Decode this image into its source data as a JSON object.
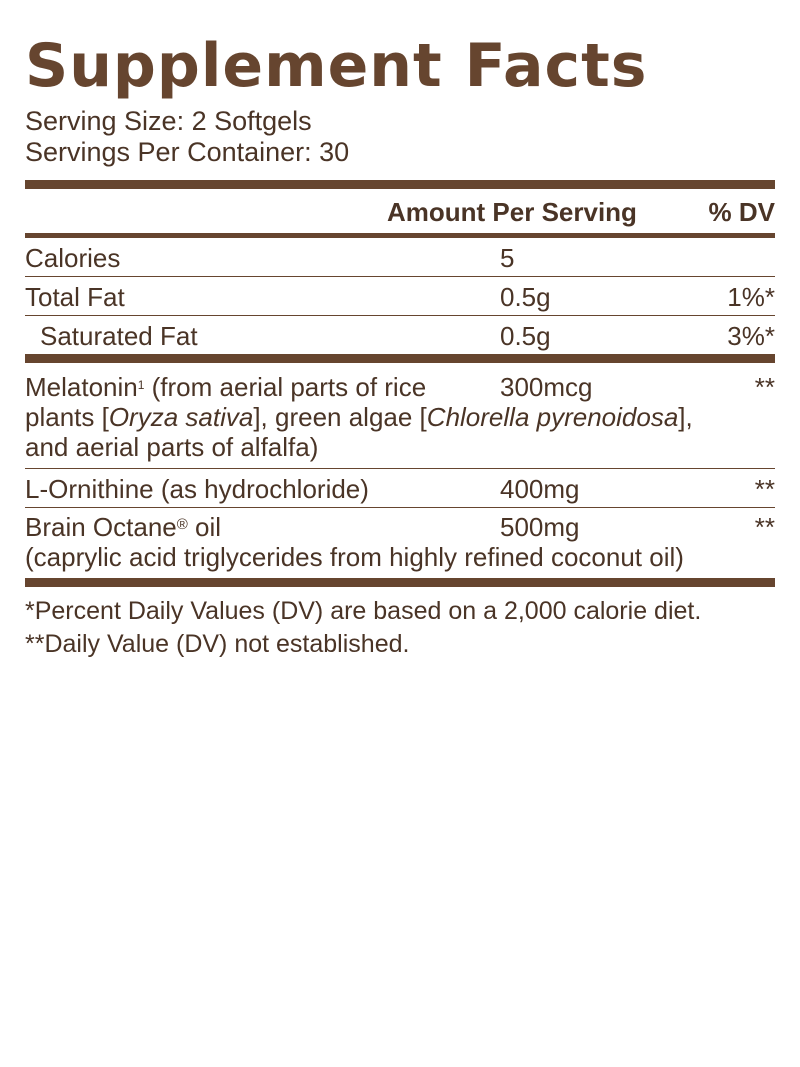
{
  "title": "Supplement Facts",
  "serving_size": "Serving Size: 2 Softgels",
  "servings_per_container": "Servings Per Container: 30",
  "header": {
    "amount": "Amount Per Serving",
    "dv": "% DV"
  },
  "nutrients": [
    {
      "name": "Calories",
      "amount": "5",
      "dv": ""
    },
    {
      "name": "Total Fat",
      "amount": "0.5g",
      "dv": "1%*"
    },
    {
      "name": "Saturated Fat",
      "amount": "0.5g",
      "dv": "3%*"
    }
  ],
  "ingredients": {
    "melatonin": {
      "name": "Melatonin",
      "sup": "1",
      "desc_a": " (from aerial parts of rice",
      "desc_b": "plants [",
      "latin1": "Oryza sativa",
      "desc_c": "], green algae [",
      "latin2": "Chlorella pyrenoidosa",
      "desc_d": "],",
      "desc_e": "and aerial parts of alfalfa)",
      "amount": "300mcg",
      "dv": "**"
    },
    "ornithine": {
      "name": "L-Ornithine (as hydrochloride)",
      "amount": "400mg",
      "dv": "**"
    },
    "brain_octane": {
      "name": "Brain Octane",
      "reg": "®",
      "name_suffix": " oil",
      "desc": "(caprylic acid triglycerides from highly refined coconut oil)",
      "amount": "500mg",
      "dv": "**"
    }
  },
  "footnotes": [
    "*Percent Daily Values (DV) are based on a 2,000 calorie diet.",
    "**Daily Value (DV) not established."
  ]
}
